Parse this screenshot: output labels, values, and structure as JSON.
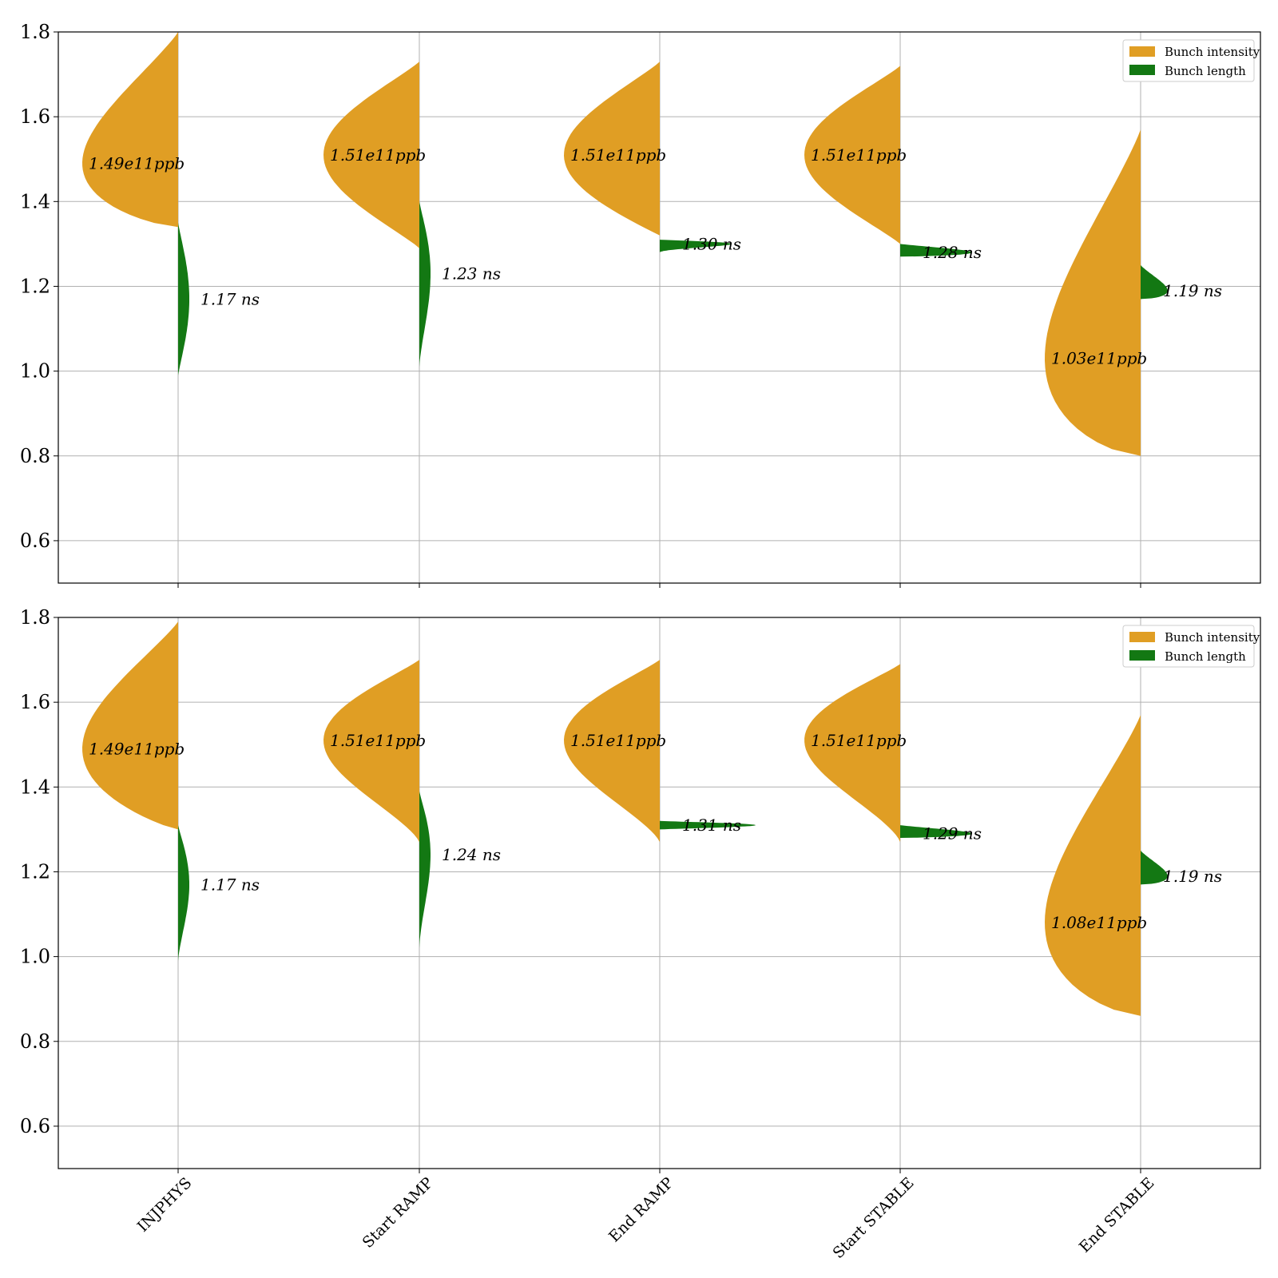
{
  "colors": {
    "intensity": "#e09e24",
    "length": "#137813",
    "grid": "#b0b0b0",
    "axis": "#000000"
  },
  "chart_data": [
    {
      "type": "violin",
      "categories": [
        "INJPHYS",
        "Start RAMP",
        "End RAMP",
        "Start STABLE",
        "End STABLE"
      ],
      "ylim": [
        0.5,
        1.8
      ],
      "yticks": [
        "0.6",
        "0.8",
        "1.0",
        "1.2",
        "1.4",
        "1.6",
        "1.8"
      ],
      "grid": true,
      "legend_position": "top-right",
      "legend": [
        "Bunch intensity",
        "Bunch length"
      ],
      "series": [
        {
          "name": "Bunch intensity",
          "side": "left",
          "unit": "ppb",
          "medians": [
            1.49,
            1.51,
            1.51,
            1.51,
            1.03
          ],
          "annotations": [
            "1.49e11ppb",
            "1.51e11ppb",
            "1.51e11ppb",
            "1.51e11ppb",
            "1.03e11ppb"
          ],
          "ranges": [
            [
              1.34,
              1.8
            ],
            [
              1.29,
              1.73
            ],
            [
              1.32,
              1.73
            ],
            [
              1.3,
              1.72
            ],
            [
              0.8,
              1.57
            ]
          ]
        },
        {
          "name": "Bunch length",
          "side": "right",
          "unit": "ns",
          "medians": [
            1.17,
            1.23,
            1.3,
            1.28,
            1.19
          ],
          "annotations": [
            "1.17 ns",
            "1.23 ns",
            "1.30 ns",
            "1.28 ns",
            "1.19 ns"
          ],
          "ranges": [
            [
              0.99,
              1.35
            ],
            [
              1.01,
              1.4
            ],
            [
              1.28,
              1.31
            ],
            [
              1.27,
              1.3
            ],
            [
              1.17,
              1.25
            ]
          ]
        }
      ]
    },
    {
      "type": "violin",
      "categories": [
        "INJPHYS",
        "Start RAMP",
        "End RAMP",
        "Start STABLE",
        "End STABLE"
      ],
      "ylim": [
        0.5,
        1.8
      ],
      "yticks": [
        "0.6",
        "0.8",
        "1.0",
        "1.2",
        "1.4",
        "1.6",
        "1.8"
      ],
      "grid": true,
      "legend_position": "top-right",
      "legend": [
        "Bunch intensity",
        "Bunch length"
      ],
      "series": [
        {
          "name": "Bunch intensity",
          "side": "left",
          "unit": "ppb",
          "medians": [
            1.49,
            1.51,
            1.51,
            1.51,
            1.08
          ],
          "annotations": [
            "1.49e11ppb",
            "1.51e11ppb",
            "1.51e11ppb",
            "1.51e11ppb",
            "1.08e11ppb"
          ],
          "ranges": [
            [
              1.3,
              1.79
            ],
            [
              1.27,
              1.7
            ],
            [
              1.27,
              1.7
            ],
            [
              1.27,
              1.69
            ],
            [
              0.86,
              1.57
            ]
          ]
        },
        {
          "name": "Bunch length",
          "side": "right",
          "unit": "ns",
          "medians": [
            1.17,
            1.24,
            1.31,
            1.29,
            1.19
          ],
          "annotations": [
            "1.17 ns",
            "1.24 ns",
            "1.31 ns",
            "1.29 ns",
            "1.19 ns"
          ],
          "ranges": [
            [
              0.99,
              1.31
            ],
            [
              1.02,
              1.39
            ],
            [
              1.3,
              1.32
            ],
            [
              1.28,
              1.31
            ],
            [
              1.17,
              1.25
            ]
          ]
        }
      ]
    }
  ]
}
